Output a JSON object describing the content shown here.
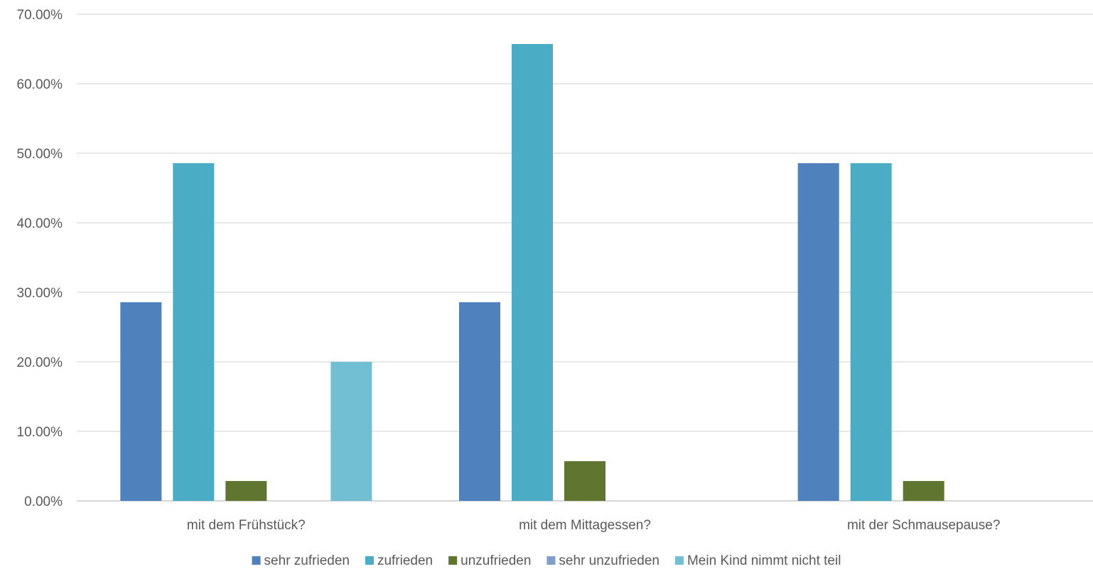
{
  "chart_data": {
    "type": "bar",
    "categories": [
      "mit dem Frühstück?",
      "mit dem Mittagessen?",
      "mit der Schmausepause?"
    ],
    "series": [
      {
        "name": "sehr zufrieden",
        "color": "#4F81BD",
        "values": [
          0.2857,
          0.2857,
          0.4857
        ]
      },
      {
        "name": "zufrieden",
        "color": "#4BACC6",
        "values": [
          0.4857,
          0.6571,
          0.4857
        ]
      },
      {
        "name": "unzufrieden",
        "color": "#5F7530",
        "values": [
          0.0286,
          0.0571,
          0.0286
        ]
      },
      {
        "name": "sehr unzufrieden",
        "color": "#7F9ECC",
        "values": [
          0,
          0,
          0
        ]
      },
      {
        "name": "Mein Kind nimmt nicht teil",
        "color": "#72BED3",
        "values": [
          0.2,
          0,
          0
        ]
      }
    ],
    "yticks": [
      "0.00%",
      "10.00%",
      "20.00%",
      "30.00%",
      "40.00%",
      "50.00%",
      "60.00%",
      "70.00%"
    ],
    "ylim": [
      0,
      0.7
    ],
    "grid": true,
    "legend_position": "bottom"
  }
}
